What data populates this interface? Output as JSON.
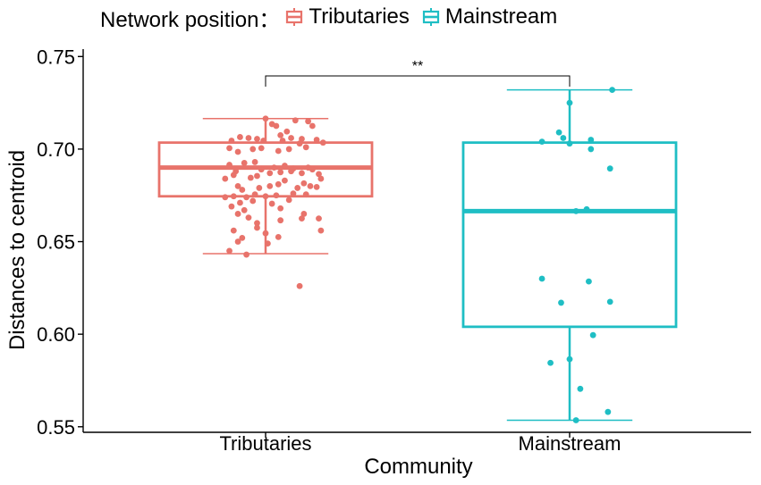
{
  "legend": {
    "title": "Network position：",
    "items": [
      {
        "label": "Tributaries",
        "color": "#E8736B"
      },
      {
        "label": "Mainstream",
        "color": "#1FBEC4"
      }
    ]
  },
  "chart_data": {
    "type": "box",
    "xlabel": "Community",
    "ylabel": "Distances to centroid",
    "categories": [
      "Tributaries",
      "Mainstream"
    ],
    "ylim": [
      0.547,
      0.754
    ],
    "yticks": [
      0.55,
      0.6,
      0.65,
      0.7,
      0.75
    ],
    "ytick_labels": [
      "0.55",
      "0.60",
      "0.65",
      "0.70",
      "0.75"
    ],
    "grid": false,
    "legend_position": "top",
    "colors": {
      "Tributaries": "#E8736B",
      "Mainstream": "#1FBEC4"
    },
    "boxes": [
      {
        "name": "Tributaries",
        "whisker_low": 0.6435,
        "q1": 0.6745,
        "median": 0.69,
        "q3": 0.7035,
        "whisker_high": 0.7165,
        "outliers": [
          0.626
        ]
      },
      {
        "name": "Mainstream",
        "whisker_low": 0.5535,
        "q1": 0.604,
        "median": 0.6665,
        "q3": 0.7035,
        "whisker_high": 0.732,
        "outliers": []
      }
    ],
    "points": {
      "Tributaries": [
        [
          -0.16,
          0.7045
        ],
        [
          -0.12,
          0.7065
        ],
        [
          -0.08,
          0.706
        ],
        [
          -0.04,
          0.7055
        ],
        [
          -0.01,
          0.7045
        ],
        [
          0.03,
          0.7135
        ],
        [
          0.07,
          0.7075
        ],
        [
          0.12,
          0.706
        ],
        [
          0.17,
          0.7055
        ],
        [
          0.2,
          0.715
        ],
        [
          0.22,
          0.7125
        ],
        [
          0.14,
          0.7155
        ],
        [
          0.0,
          0.7165
        ],
        [
          0.05,
          0.7125
        ],
        [
          0.1,
          0.7095
        ],
        [
          -0.17,
          0.7005
        ],
        [
          -0.13,
          0.6985
        ],
        [
          -0.06,
          0.7
        ],
        [
          -0.02,
          0.7005
        ],
        [
          0.06,
          0.699
        ],
        [
          0.11,
          0.7
        ],
        [
          0.16,
          0.703
        ],
        [
          0.19,
          0.701
        ],
        [
          0.24,
          0.705
        ],
        [
          0.27,
          0.7035
        ],
        [
          0.08,
          0.7045
        ],
        [
          -0.17,
          0.6915
        ],
        [
          -0.14,
          0.688
        ],
        [
          -0.1,
          0.6925
        ],
        [
          -0.05,
          0.693
        ],
        [
          -0.02,
          0.689
        ],
        [
          0.04,
          0.69
        ],
        [
          0.09,
          0.691
        ],
        [
          0.13,
          0.6895
        ],
        [
          0.2,
          0.69
        ],
        [
          -0.19,
          0.684
        ],
        [
          -0.15,
          0.686
        ],
        [
          -0.07,
          0.6845
        ],
        [
          -0.04,
          0.6855
        ],
        [
          0.02,
          0.687
        ],
        [
          0.07,
          0.6875
        ],
        [
          0.12,
          0.688
        ],
        [
          0.17,
          0.687
        ],
        [
          0.22,
          0.689
        ],
        [
          0.25,
          0.6865
        ],
        [
          -0.13,
          0.68
        ],
        [
          -0.11,
          0.678
        ],
        [
          -0.03,
          0.679
        ],
        [
          0.02,
          0.68
        ],
        [
          0.06,
          0.681
        ],
        [
          0.09,
          0.683
        ],
        [
          0.15,
          0.679
        ],
        [
          0.21,
          0.68
        ],
        [
          0.26,
          0.684
        ],
        [
          0.18,
          0.6815
        ],
        [
          -0.19,
          0.674
        ],
        [
          -0.15,
          0.6745
        ],
        [
          -0.09,
          0.674
        ],
        [
          -0.05,
          0.6755
        ],
        [
          0.0,
          0.6745
        ],
        [
          0.05,
          0.675
        ],
        [
          0.13,
          0.676
        ],
        [
          0.19,
          0.6755
        ],
        [
          0.24,
          0.6795
        ],
        [
          -0.12,
          0.671
        ],
        [
          -0.06,
          0.672
        ],
        [
          0.03,
          0.6705
        ],
        [
          0.11,
          0.6725
        ],
        [
          -0.16,
          0.669
        ],
        [
          -0.1,
          0.667
        ],
        [
          0.07,
          0.668
        ],
        [
          -0.13,
          0.665
        ],
        [
          -0.08,
          0.663
        ],
        [
          -0.04,
          0.66
        ],
        [
          0.07,
          0.6615
        ],
        [
          0.18,
          0.665
        ],
        [
          0.17,
          0.6625
        ],
        [
          0.25,
          0.6625
        ],
        [
          0.26,
          0.656
        ],
        [
          -0.15,
          0.656
        ],
        [
          -0.11,
          0.652
        ],
        [
          -0.04,
          0.6575
        ],
        [
          0.0,
          0.6545
        ],
        [
          0.06,
          0.6525
        ],
        [
          -0.13,
          0.65
        ],
        [
          0.01,
          0.649
        ],
        [
          -0.17,
          0.645
        ],
        [
          -0.09,
          0.643
        ],
        [
          0.16,
          0.626
        ]
      ],
      "Mainstream": [
        [
          0.2,
          0.732
        ],
        [
          0.0,
          0.725
        ],
        [
          -0.05,
          0.709
        ],
        [
          -0.03,
          0.706
        ],
        [
          0.0,
          0.703
        ],
        [
          -0.13,
          0.704
        ],
        [
          0.1,
          0.705
        ],
        [
          0.1,
          0.7
        ],
        [
          0.19,
          0.6895
        ],
        [
          0.03,
          0.6665
        ],
        [
          0.08,
          0.6675
        ],
        [
          -0.13,
          0.63
        ],
        [
          0.09,
          0.6285
        ],
        [
          -0.04,
          0.617
        ],
        [
          0.19,
          0.6175
        ],
        [
          0.11,
          0.5995
        ],
        [
          0.0,
          0.5865
        ],
        [
          -0.09,
          0.5845
        ],
        [
          0.05,
          0.5705
        ],
        [
          0.18,
          0.558
        ],
        [
          0.03,
          0.5535
        ]
      ]
    },
    "significance": {
      "label": "**",
      "from": "Tributaries",
      "to": "Mainstream",
      "y": 0.7395
    }
  }
}
